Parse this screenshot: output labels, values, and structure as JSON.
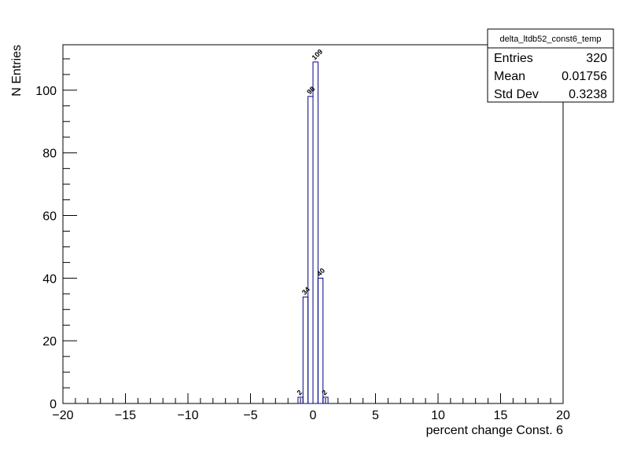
{
  "chart_data": {
    "type": "histogram",
    "xlabel": "percent change Const. 6",
    "ylabel": "N Entries",
    "bins": [
      -1.2,
      -0.8,
      -0.4,
      0,
      0.4,
      0.8,
      1.2
    ],
    "counts": [
      2,
      34,
      98,
      109,
      40,
      2
    ],
    "color": "#00008b",
    "xlim": [
      -20,
      20
    ],
    "ylim": [
      0,
      114.5
    ],
    "xticks": [
      {
        "value": -20,
        "label": "−20"
      },
      {
        "value": -15,
        "label": "−15"
      },
      {
        "value": -10,
        "label": "−10"
      },
      {
        "value": -5,
        "label": "−5"
      },
      0,
      5,
      10,
      15,
      20
    ],
    "yticks": [
      0,
      20,
      40,
      60,
      80,
      100
    ],
    "xminorticks": [
      -19,
      -18,
      -17,
      -16,
      -14,
      -13,
      -12,
      -11,
      -9,
      -8,
      -7,
      -6,
      -4,
      -3,
      -2,
      -1,
      1,
      2,
      3,
      4,
      6,
      7,
      8,
      9,
      11,
      12,
      13,
      14,
      16,
      17,
      18,
      19
    ],
    "yminorticks": [
      5,
      10,
      15,
      25,
      30,
      35,
      45,
      50,
      55,
      65,
      70,
      75,
      85,
      90,
      95,
      105,
      110
    ],
    "grid": false,
    "stats": {
      "title": "delta_ltdb52_const6_temp",
      "rows": [
        [
          "Entries",
          320
        ],
        [
          "Mean",
          0.01756
        ],
        [
          "Std Dev",
          0.3238
        ]
      ]
    }
  }
}
